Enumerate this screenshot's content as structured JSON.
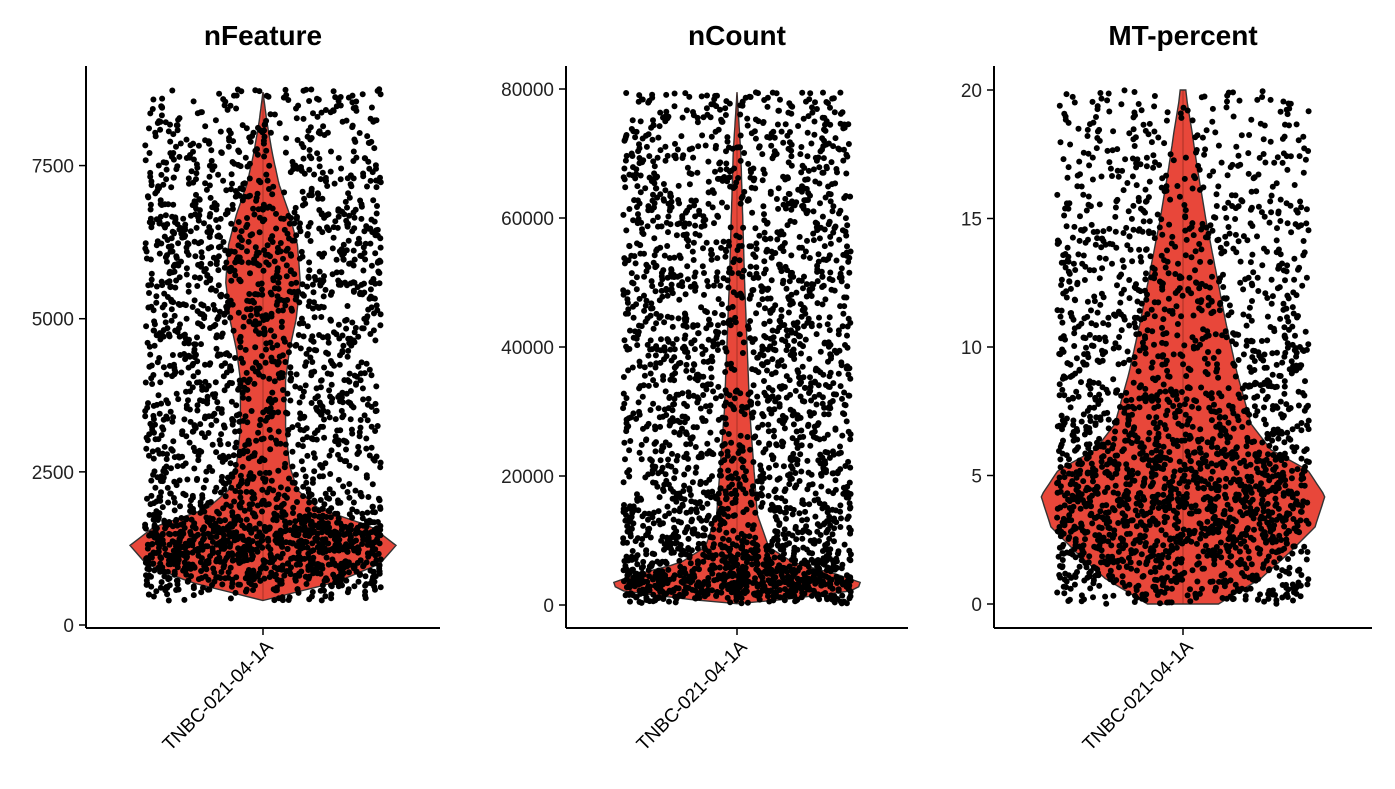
{
  "colors": {
    "violin_fill": "#e8473a",
    "violin_stroke": "#333333",
    "point": "#000000"
  },
  "chart_data": [
    {
      "type": "violin",
      "title": "nFeature",
      "categories": [
        "TNBC-021-04-1A"
      ],
      "y_ticks": [
        0,
        2500,
        5000,
        7500
      ],
      "y_tick_labels": [
        "0",
        "2500",
        "5000",
        "7500"
      ],
      "ylim": [
        0,
        8750
      ],
      "violin_max": 8700,
      "violin_min": 400,
      "points_range": [
        400,
        8750
      ],
      "density_profile": [
        [
          400,
          0.0
        ],
        [
          700,
          0.55
        ],
        [
          1000,
          0.88
        ],
        [
          1300,
          1.0
        ],
        [
          1600,
          0.82
        ],
        [
          1900,
          0.42
        ],
        [
          2200,
          0.26
        ],
        [
          2600,
          0.2
        ],
        [
          3200,
          0.17
        ],
        [
          4000,
          0.17
        ],
        [
          4500,
          0.2
        ],
        [
          5000,
          0.25
        ],
        [
          5600,
          0.28
        ],
        [
          6200,
          0.26
        ],
        [
          6700,
          0.2
        ],
        [
          7200,
          0.12
        ],
        [
          7700,
          0.07
        ],
        [
          8200,
          0.03
        ],
        [
          8700,
          0.0
        ]
      ]
    },
    {
      "type": "violin",
      "title": "nCount",
      "categories": [
        "TNBC-021-04-1A"
      ],
      "y_ticks": [
        0,
        20000,
        40000,
        60000,
        80000
      ],
      "y_tick_labels": [
        "0",
        "20000",
        "40000",
        "60000",
        "80000"
      ],
      "ylim": [
        0,
        80000
      ],
      "violin_max": 79500,
      "violin_min": 200,
      "points_range": [
        200,
        79500
      ],
      "density_profile": [
        [
          200,
          0.0
        ],
        [
          1000,
          0.45
        ],
        [
          2200,
          0.9
        ],
        [
          3300,
          1.0
        ],
        [
          4800,
          0.78
        ],
        [
          6500,
          0.45
        ],
        [
          9000,
          0.25
        ],
        [
          14000,
          0.16
        ],
        [
          22000,
          0.13
        ],
        [
          30000,
          0.1
        ],
        [
          40000,
          0.08
        ],
        [
          50000,
          0.06
        ],
        [
          60000,
          0.045
        ],
        [
          70000,
          0.03
        ],
        [
          79500,
          0.0
        ]
      ]
    },
    {
      "type": "violin",
      "title": "MT-percent",
      "categories": [
        "TNBC-021-04-1A"
      ],
      "y_ticks": [
        0,
        5,
        10,
        15,
        20
      ],
      "y_tick_labels": [
        "0",
        "5",
        "10",
        "15",
        "20"
      ],
      "ylim": [
        0,
        20
      ],
      "violin_max": 20,
      "violin_min": 0,
      "points_range": [
        0,
        20
      ],
      "density_profile": [
        [
          0.0,
          0.25
        ],
        [
          1.0,
          0.55
        ],
        [
          2.0,
          0.75
        ],
        [
          3.0,
          0.93
        ],
        [
          4.2,
          1.0
        ],
        [
          5.2,
          0.88
        ],
        [
          6.0,
          0.62
        ],
        [
          7.0,
          0.48
        ],
        [
          9.0,
          0.38
        ],
        [
          11.0,
          0.3
        ],
        [
          13.0,
          0.23
        ],
        [
          15.0,
          0.16
        ],
        [
          17.0,
          0.1
        ],
        [
          18.5,
          0.06
        ],
        [
          19.5,
          0.03
        ],
        [
          20.0,
          0.02
        ]
      ]
    }
  ]
}
